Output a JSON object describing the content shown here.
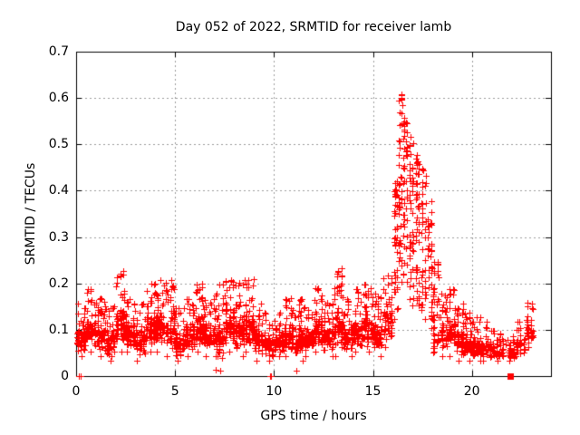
{
  "chart_data": {
    "type": "scatter",
    "title": "Day 052 of 2022, SRMTID for receiver lamb",
    "xlabel": "GPS time / hours",
    "ylabel": "SRMTID / TECUs",
    "xlim": [
      0,
      24
    ],
    "ylim": [
      0,
      0.7
    ],
    "xticks": [
      {
        "v": 0,
        "label": "0"
      },
      {
        "v": 5,
        "label": "5"
      },
      {
        "v": 10,
        "label": "10"
      },
      {
        "v": 15,
        "label": "15"
      },
      {
        "v": 20,
        "label": "20"
      }
    ],
    "yticks": [
      {
        "v": 0.0,
        "label": "0"
      },
      {
        "v": 0.1,
        "label": "0.1"
      },
      {
        "v": 0.2,
        "label": "0.2"
      },
      {
        "v": 0.3,
        "label": "0.3"
      },
      {
        "v": 0.4,
        "label": "0.4"
      },
      {
        "v": 0.5,
        "label": "0.5"
      },
      {
        "v": 0.6,
        "label": "0.6"
      },
      {
        "v": 0.7,
        "label": "0.7"
      }
    ],
    "grid": {
      "show": true,
      "color": "#9c9c9c",
      "dash": [
        2,
        3
      ]
    },
    "axis_color": "#000000",
    "marker": {
      "shape": "plus",
      "color": "#ff0000",
      "size": 7
    },
    "seed": 20220052,
    "series_name": "SRMTID",
    "envelope_bins": [
      [
        0.0,
        0.5,
        0.04,
        0.16,
        60,
        0
      ],
      [
        0.5,
        1.0,
        0.05,
        0.19,
        65,
        0
      ],
      [
        1.0,
        1.5,
        0.04,
        0.17,
        65,
        0
      ],
      [
        1.5,
        2.0,
        0.03,
        0.15,
        60,
        0
      ],
      [
        2.0,
        2.5,
        0.05,
        0.23,
        70,
        0
      ],
      [
        2.5,
        3.0,
        0.05,
        0.17,
        65,
        0
      ],
      [
        3.0,
        3.5,
        0.03,
        0.16,
        60,
        0
      ],
      [
        3.5,
        4.0,
        0.05,
        0.2,
        70,
        0
      ],
      [
        4.0,
        4.5,
        0.05,
        0.21,
        70,
        0
      ],
      [
        4.5,
        5.0,
        0.04,
        0.21,
        65,
        0
      ],
      [
        5.0,
        5.5,
        0.03,
        0.15,
        60,
        0
      ],
      [
        5.5,
        6.0,
        0.04,
        0.17,
        65,
        0
      ],
      [
        6.0,
        6.5,
        0.05,
        0.2,
        70,
        0
      ],
      [
        6.5,
        7.0,
        0.04,
        0.17,
        60,
        0
      ],
      [
        7.0,
        7.5,
        0.01,
        0.2,
        65,
        0
      ],
      [
        7.5,
        8.0,
        0.05,
        0.21,
        70,
        0
      ],
      [
        8.0,
        8.5,
        0.04,
        0.21,
        70,
        0
      ],
      [
        8.5,
        9.0,
        0.05,
        0.21,
        65,
        0
      ],
      [
        9.0,
        9.5,
        0.03,
        0.16,
        55,
        0
      ],
      [
        9.5,
        10.0,
        0.03,
        0.14,
        50,
        0
      ],
      [
        10.0,
        10.5,
        0.04,
        0.14,
        60,
        0
      ],
      [
        10.5,
        11.0,
        0.04,
        0.17,
        65,
        0
      ],
      [
        11.0,
        11.5,
        0.03,
        0.17,
        60,
        0
      ],
      [
        11.5,
        12.0,
        0.04,
        0.15,
        60,
        0
      ],
      [
        12.0,
        12.5,
        0.05,
        0.19,
        65,
        0
      ],
      [
        12.5,
        13.0,
        0.04,
        0.16,
        60,
        0
      ],
      [
        13.0,
        13.5,
        0.04,
        0.235,
        65,
        0
      ],
      [
        13.5,
        14.0,
        0.04,
        0.17,
        60,
        0
      ],
      [
        14.0,
        14.5,
        0.05,
        0.19,
        65,
        0
      ],
      [
        14.5,
        15.0,
        0.05,
        0.2,
        65,
        0
      ],
      [
        15.0,
        15.5,
        0.04,
        0.18,
        60,
        0
      ],
      [
        15.5,
        16.0,
        0.06,
        0.22,
        55,
        0
      ],
      [
        16.0,
        16.3,
        0.12,
        0.42,
        40,
        1
      ],
      [
        16.3,
        16.5,
        0.2,
        0.61,
        45,
        1
      ],
      [
        16.5,
        16.8,
        0.2,
        0.56,
        50,
        1
      ],
      [
        16.8,
        17.1,
        0.15,
        0.52,
        45,
        1
      ],
      [
        17.1,
        17.4,
        0.15,
        0.48,
        45,
        1
      ],
      [
        17.4,
        17.7,
        0.12,
        0.45,
        40,
        1
      ],
      [
        17.7,
        18.0,
        0.1,
        0.38,
        40,
        1
      ],
      [
        18.0,
        18.4,
        0.05,
        0.25,
        40,
        1
      ],
      [
        18.4,
        18.8,
        0.04,
        0.18,
        45,
        0
      ],
      [
        18.8,
        19.2,
        0.04,
        0.19,
        50,
        0
      ],
      [
        19.2,
        19.6,
        0.03,
        0.16,
        50,
        0
      ],
      [
        19.6,
        20.0,
        0.03,
        0.14,
        50,
        0
      ],
      [
        20.0,
        20.5,
        0.03,
        0.13,
        55,
        0
      ],
      [
        20.5,
        21.0,
        0.03,
        0.12,
        50,
        0
      ],
      [
        21.0,
        21.5,
        0.03,
        0.1,
        35,
        0
      ],
      [
        21.5,
        21.8,
        0.04,
        0.08,
        12,
        0
      ],
      [
        21.8,
        22.2,
        0.03,
        0.09,
        30,
        0
      ],
      [
        22.2,
        22.7,
        0.04,
        0.12,
        40,
        0
      ],
      [
        22.7,
        23.1,
        0.06,
        0.16,
        40,
        0
      ]
    ],
    "isolated_points": [
      [
        0.13,
        0.0
      ],
      [
        0.22,
        0.0
      ],
      [
        7.3,
        0.012
      ],
      [
        9.78,
        0.0
      ],
      [
        9.86,
        0.0
      ],
      [
        11.15,
        0.012
      ]
    ],
    "square_marker": {
      "x": 21.95,
      "y": 0.0,
      "color": "#ff0000",
      "size": 7
    }
  }
}
